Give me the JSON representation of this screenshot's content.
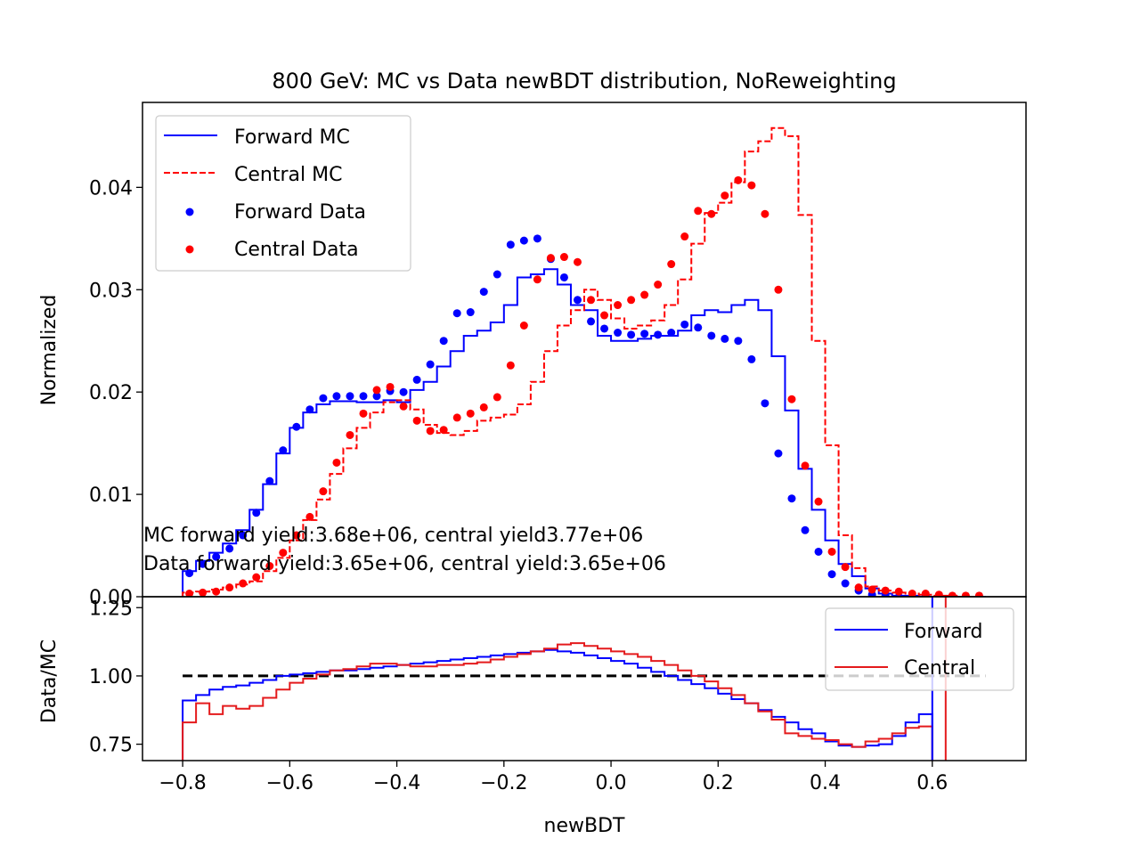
{
  "chart_data": [
    {
      "type": "line",
      "title": "800 GeV: MC vs Data newBDT distribution, NoReweighting",
      "ylabel": "Normalized",
      "xlim": [
        -0.875,
        0.775
      ],
      "ylim": [
        0,
        0.0483
      ],
      "yticks": [
        "0.00",
        "0.01",
        "0.02",
        "0.03",
        "0.04"
      ],
      "ytick_values": [
        0,
        0.01,
        0.02,
        0.03,
        0.04
      ],
      "legend_position": "upper left",
      "annotations": [
        "MC forward yield:3.68e+06, central yield3.77e+06",
        "Data forward yield:3.65e+06, central yield:3.65e+06"
      ],
      "bin_edges": [
        -0.8,
        -0.775,
        -0.75,
        -0.725,
        -0.7,
        -0.675,
        -0.65,
        -0.625,
        -0.6,
        -0.575,
        -0.55,
        -0.525,
        -0.5,
        -0.475,
        -0.45,
        -0.425,
        -0.4,
        -0.375,
        -0.35,
        -0.325,
        -0.3,
        -0.275,
        -0.25,
        -0.225,
        -0.2,
        -0.175,
        -0.15,
        -0.125,
        -0.1,
        -0.075,
        -0.05,
        -0.025,
        0.0,
        0.025,
        0.05,
        0.075,
        0.1,
        0.125,
        0.15,
        0.175,
        0.2,
        0.225,
        0.25,
        0.275,
        0.3,
        0.325,
        0.35,
        0.375,
        0.4,
        0.425,
        0.45,
        0.475,
        0.5,
        0.525,
        0.55,
        0.575,
        0.6,
        0.625,
        0.65,
        0.675,
        0.7
      ],
      "bin_centers": [
        -0.7875,
        -0.7625,
        -0.7375,
        -0.7125,
        -0.6875,
        -0.6625,
        -0.6375,
        -0.6125,
        -0.5875,
        -0.5625,
        -0.5375,
        -0.5125,
        -0.4875,
        -0.4625,
        -0.4375,
        -0.4125,
        -0.3875,
        -0.3625,
        -0.3375,
        -0.3125,
        -0.2875,
        -0.2625,
        -0.2375,
        -0.2125,
        -0.1875,
        -0.1625,
        -0.1375,
        -0.1125,
        -0.0875,
        -0.0625,
        -0.0375,
        -0.0125,
        0.0125,
        0.0375,
        0.0625,
        0.0875,
        0.1125,
        0.1375,
        0.1625,
        0.1875,
        0.2125,
        0.2375,
        0.2625,
        0.2875,
        0.3125,
        0.3375,
        0.3625,
        0.3875,
        0.4125,
        0.4375,
        0.4625,
        0.4875,
        0.5125,
        0.5375,
        0.5625,
        0.5875,
        0.6125,
        0.6375,
        0.6625,
        0.6875
      ],
      "series": [
        {
          "name": "Forward MC",
          "kind": "step",
          "color": "#0000ff",
          "dash": "solid",
          "values": [
            0.0025,
            0.0035,
            0.0043,
            0.0052,
            0.0065,
            0.0085,
            0.011,
            0.014,
            0.0165,
            0.018,
            0.0188,
            0.0191,
            0.0191,
            0.019,
            0.019,
            0.0192,
            0.019,
            0.0202,
            0.021,
            0.0225,
            0.024,
            0.0255,
            0.026,
            0.0268,
            0.0285,
            0.0312,
            0.0315,
            0.032,
            0.0305,
            0.0285,
            0.028,
            0.0255,
            0.025,
            0.025,
            0.0252,
            0.0255,
            0.0255,
            0.026,
            0.0275,
            0.028,
            0.0278,
            0.0285,
            0.029,
            0.028,
            0.0235,
            0.0182,
            0.0125,
            0.0085,
            0.0055,
            0.0032,
            0.002,
            0.0008,
            0.0003,
            0.0001,
            0.0001,
            0.0,
            0.0,
            0.0,
            0.0,
            0.0
          ]
        },
        {
          "name": "Central MC",
          "kind": "step",
          "color": "#ff0000",
          "dash": "dashed",
          "values": [
            0.0004,
            0.0005,
            0.0007,
            0.0009,
            0.0012,
            0.0015,
            0.0025,
            0.0038,
            0.0055,
            0.0075,
            0.0095,
            0.012,
            0.0145,
            0.0165,
            0.018,
            0.019,
            0.0192,
            0.0183,
            0.0168,
            0.016,
            0.0158,
            0.0162,
            0.0172,
            0.0175,
            0.0178,
            0.0188,
            0.021,
            0.024,
            0.0265,
            0.028,
            0.03,
            0.029,
            0.0272,
            0.0262,
            0.0265,
            0.027,
            0.0285,
            0.031,
            0.0345,
            0.0375,
            0.0385,
            0.0405,
            0.0435,
            0.0445,
            0.0458,
            0.045,
            0.0373,
            0.025,
            0.0148,
            0.006,
            0.0028,
            0.001,
            0.0006,
            0.0004,
            0.0003,
            0.0002,
            0.0001,
            0.0001,
            0.0,
            0.0
          ]
        },
        {
          "name": "Forward Data",
          "kind": "points",
          "color": "#0000ff",
          "values": [
            0.0023,
            0.0032,
            0.0039,
            0.0047,
            0.006,
            0.0082,
            0.0113,
            0.0143,
            0.0166,
            0.0183,
            0.0194,
            0.0196,
            0.0196,
            0.0196,
            0.0196,
            0.0201,
            0.02,
            0.0212,
            0.0227,
            0.025,
            0.0277,
            0.0278,
            0.0298,
            0.0315,
            0.0344,
            0.0348,
            0.035,
            0.033,
            0.0312,
            0.029,
            0.0269,
            0.0262,
            0.0258,
            0.0256,
            0.0257,
            0.0256,
            0.0258,
            0.0266,
            0.0263,
            0.0255,
            0.0252,
            0.025,
            0.0232,
            0.0189,
            0.014,
            0.0096,
            0.0065,
            0.0044,
            0.0022,
            0.0013,
            0.0006,
            0.0002,
            0.0001,
            0.0,
            0.0,
            0.0,
            0.0,
            0.0,
            0.0,
            0.0
          ]
        },
        {
          "name": "Central Data",
          "kind": "points",
          "color": "#ff0000",
          "values": [
            0.0003,
            0.0004,
            0.0005,
            0.0009,
            0.0013,
            0.0019,
            0.003,
            0.0043,
            0.006,
            0.0078,
            0.0103,
            0.0131,
            0.0158,
            0.0179,
            0.0202,
            0.0205,
            0.0186,
            0.0172,
            0.0162,
            0.0163,
            0.0175,
            0.0179,
            0.0185,
            0.0195,
            0.0226,
            0.0265,
            0.031,
            0.0331,
            0.0332,
            0.0327,
            0.029,
            0.0275,
            0.0285,
            0.029,
            0.0295,
            0.0305,
            0.0325,
            0.0352,
            0.0377,
            0.0374,
            0.0392,
            0.0407,
            0.0402,
            0.0374,
            0.03,
            0.0193,
            0.0128,
            0.0093,
            0.0044,
            0.0029,
            0.0009,
            0.0007,
            0.0006,
            0.0005,
            0.0003,
            0.0003,
            0.0002,
            0.0001,
            0.0001,
            0.0001
          ]
        }
      ]
    },
    {
      "type": "line",
      "xlabel": "newBDT",
      "ylabel": "Data/MC",
      "xlim": [
        -0.875,
        0.775
      ],
      "ylim": [
        0.69,
        1.29
      ],
      "xticks": [
        "−0.8",
        "−0.6",
        "−0.4",
        "−0.2",
        "0.0",
        "0.2",
        "0.4",
        "0.6"
      ],
      "xtick_values": [
        -0.8,
        -0.6,
        -0.4,
        -0.2,
        0.0,
        0.2,
        0.4,
        0.6
      ],
      "yticks": [
        "0.75",
        "1.00",
        "1.25"
      ],
      "ytick_values": [
        0.75,
        1.0,
        1.25
      ],
      "reference_line": 1.0,
      "legend_position": "upper right",
      "bin_edges_first": -0.8,
      "bin_width": 0.025,
      "series": [
        {
          "name": "Forward",
          "kind": "step",
          "color": "#0000ff",
          "values": [
            0.91,
            0.93,
            0.95,
            0.96,
            0.965,
            0.975,
            0.985,
            1.0,
            1.005,
            1.01,
            1.015,
            1.02,
            1.02,
            1.025,
            1.03,
            1.035,
            1.04,
            1.045,
            1.05,
            1.055,
            1.06,
            1.065,
            1.07,
            1.075,
            1.08,
            1.085,
            1.09,
            1.095,
            1.09,
            1.085,
            1.075,
            1.065,
            1.055,
            1.045,
            1.03,
            1.015,
            1.0,
            0.985,
            0.97,
            0.955,
            0.935,
            0.915,
            0.9,
            0.875,
            0.85,
            0.83,
            0.805,
            0.79,
            0.76,
            0.745,
            0.74,
            0.745,
            0.75,
            0.78,
            0.83,
            0.86,
            null,
            null,
            null,
            null
          ]
        },
        {
          "name": "Central",
          "kind": "step",
          "color": "#e41a1c",
          "values": [
            0.83,
            0.9,
            0.86,
            0.89,
            0.88,
            0.89,
            0.92,
            0.95,
            0.975,
            0.99,
            1.005,
            1.02,
            1.025,
            1.035,
            1.045,
            1.045,
            1.04,
            1.035,
            1.035,
            1.04,
            1.04,
            1.045,
            1.05,
            1.06,
            1.07,
            1.08,
            1.09,
            1.1,
            1.115,
            1.12,
            1.11,
            1.1,
            1.09,
            1.08,
            1.07,
            1.055,
            1.04,
            1.02,
            1.0,
            0.98,
            0.955,
            0.93,
            0.9,
            0.87,
            0.84,
            0.79,
            0.78,
            0.77,
            0.765,
            0.75,
            0.74,
            0.76,
            0.77,
            0.79,
            0.81,
            0.815,
            null,
            null,
            null,
            null
          ]
        }
      ],
      "spikes": [
        {
          "series": "Forward",
          "x": 0.6
        },
        {
          "series": "Central",
          "x": 0.625
        }
      ]
    }
  ]
}
